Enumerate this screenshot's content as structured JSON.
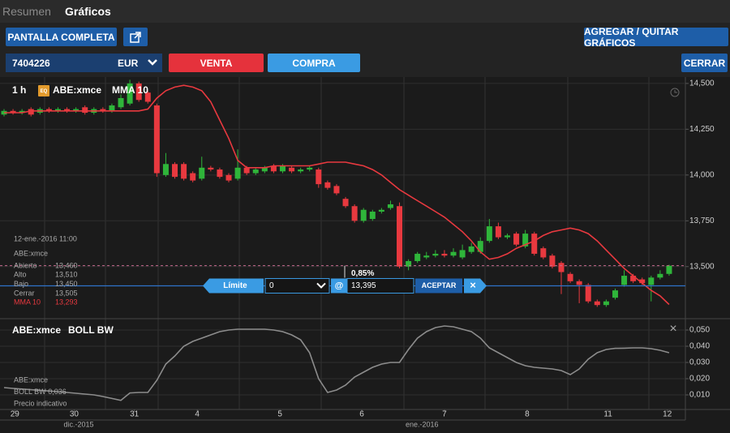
{
  "header": {
    "tabs": [
      "Resumen",
      "Gráficos"
    ]
  },
  "toolbar": {
    "fullscreen": "PANTALLA COMPLETA",
    "add_remove": "AGREGAR / QUITAR GRÁFICOS"
  },
  "order_bar": {
    "account": "7404226",
    "currency": "EUR",
    "sell": "VENTA",
    "buy": "COMPRA",
    "close": "CERRAR"
  },
  "chart_data": [
    {
      "type": "candlestick",
      "interval": "1 h",
      "badge": "EQ",
      "symbol": "ABE:xmce",
      "x": [
        0,
        1,
        2,
        3,
        4,
        5,
        6,
        7,
        8,
        9,
        10,
        11,
        12,
        13,
        14,
        15,
        16,
        17,
        18,
        19,
        20,
        21,
        22,
        23,
        24,
        25,
        26,
        27,
        28,
        29,
        30,
        31,
        32,
        33,
        34,
        35,
        36,
        37,
        38,
        39,
        40,
        41,
        42,
        43,
        44,
        45,
        46,
        47,
        48,
        49,
        50,
        51,
        52,
        53,
        54,
        55,
        56,
        57,
        58,
        59,
        60,
        61,
        62,
        63,
        64,
        65,
        66,
        67,
        68,
        69,
        70,
        71,
        72,
        73,
        74
      ],
      "open": [
        14.33,
        14.35,
        14.34,
        14.36,
        14.34,
        14.36,
        14.35,
        14.36,
        14.35,
        14.37,
        14.34,
        14.36,
        14.35,
        14.37,
        14.39,
        14.5,
        14.45,
        14.38,
        14.0,
        14.06,
        14.06,
        14.01,
        13.98,
        14.04,
        14.03,
        14.0,
        13.98,
        14.04,
        14.01,
        14.02,
        14.05,
        14.02,
        14.04,
        14.02,
        14.03,
        14.03,
        13.96,
        13.94,
        13.87,
        13.83,
        13.75,
        13.76,
        13.8,
        13.82,
        13.83,
        13.5,
        13.53,
        13.55,
        13.56,
        13.57,
        13.56,
        13.55,
        13.58,
        13.58,
        13.64,
        13.72,
        13.66,
        13.68,
        13.61,
        13.68,
        13.6,
        13.56,
        13.52,
        13.46,
        13.42,
        13.4,
        13.31,
        13.29,
        13.33,
        13.4,
        13.45,
        13.43,
        13.4,
        13.44,
        13.46
      ],
      "high": [
        14.36,
        14.36,
        14.36,
        14.37,
        14.37,
        14.37,
        14.37,
        14.37,
        14.37,
        14.38,
        14.37,
        14.37,
        14.39,
        14.44,
        14.52,
        14.51,
        14.46,
        14.39,
        14.12,
        14.07,
        14.07,
        14.02,
        14.1,
        14.05,
        14.04,
        14.01,
        14.14,
        14.05,
        14.04,
        14.05,
        14.06,
        14.06,
        14.05,
        14.04,
        14.05,
        14.04,
        13.97,
        13.95,
        13.88,
        13.84,
        13.82,
        13.81,
        13.82,
        13.86,
        13.85,
        13.54,
        13.58,
        13.58,
        13.59,
        13.59,
        13.6,
        13.62,
        13.63,
        13.66,
        13.76,
        13.74,
        13.68,
        13.69,
        13.7,
        13.69,
        13.61,
        13.57,
        13.53,
        13.47,
        13.43,
        13.41,
        13.32,
        13.32,
        13.38,
        13.48,
        13.46,
        13.44,
        13.45,
        13.48,
        13.51
      ],
      "low": [
        14.32,
        14.33,
        14.33,
        14.32,
        14.33,
        14.34,
        14.34,
        14.34,
        14.34,
        14.33,
        14.33,
        14.34,
        14.34,
        14.36,
        14.38,
        14.4,
        14.39,
        13.99,
        13.99,
        13.98,
        13.97,
        13.96,
        13.97,
        14.02,
        13.98,
        13.96,
        13.97,
        14.0,
        14.0,
        14.01,
        14.01,
        14.01,
        14.01,
        14.01,
        14.02,
        13.93,
        13.92,
        13.89,
        13.82,
        13.74,
        13.74,
        13.75,
        13.79,
        13.81,
        13.49,
        13.48,
        13.52,
        13.54,
        13.55,
        13.55,
        13.55,
        13.54,
        13.57,
        13.57,
        13.63,
        13.65,
        13.65,
        13.61,
        13.6,
        13.56,
        13.54,
        13.49,
        13.35,
        13.41,
        13.3,
        13.3,
        13.28,
        13.28,
        13.32,
        13.39,
        13.41,
        13.4,
        13.31,
        13.43,
        13.45
      ],
      "close": [
        14.35,
        14.34,
        14.35,
        14.33,
        14.36,
        14.35,
        14.36,
        14.35,
        14.36,
        14.34,
        14.36,
        14.35,
        14.38,
        14.42,
        14.5,
        14.41,
        14.4,
        14.01,
        14.06,
        13.99,
        13.98,
        13.97,
        14.04,
        14.03,
        13.99,
        13.97,
        14.04,
        14.01,
        14.03,
        14.04,
        14.02,
        14.05,
        14.02,
        14.03,
        14.04,
        13.95,
        13.93,
        13.9,
        13.83,
        13.75,
        13.81,
        13.8,
        13.81,
        13.84,
        13.5,
        13.53,
        13.57,
        13.56,
        13.57,
        13.56,
        13.58,
        13.59,
        13.61,
        13.64,
        13.72,
        13.66,
        13.67,
        13.62,
        13.68,
        13.57,
        13.55,
        13.5,
        13.47,
        13.42,
        13.4,
        13.31,
        13.29,
        13.31,
        13.37,
        13.45,
        13.42,
        13.41,
        13.44,
        13.46,
        13.505
      ],
      "up_color": "#2fb53a",
      "down_color": "#e8393f",
      "series": [
        {
          "name": "MMA 10",
          "color": "#e8393f",
          "values": [
            14.34,
            14.34,
            14.34,
            14.35,
            14.35,
            14.35,
            14.35,
            14.35,
            14.35,
            14.35,
            14.35,
            14.35,
            14.35,
            14.35,
            14.35,
            14.35,
            14.36,
            14.42,
            14.46,
            14.48,
            14.49,
            14.48,
            14.46,
            14.4,
            14.3,
            14.2,
            14.08,
            14.04,
            14.04,
            14.04,
            14.05,
            14.05,
            14.05,
            14.05,
            14.05,
            14.06,
            14.07,
            14.07,
            14.07,
            14.06,
            14.05,
            14.03,
            14.0,
            13.96,
            13.92,
            13.89,
            13.86,
            13.83,
            13.8,
            13.77,
            13.73,
            13.69,
            13.64,
            13.58,
            13.54,
            13.55,
            13.57,
            13.6,
            13.62,
            13.64,
            13.67,
            13.69,
            13.7,
            13.71,
            13.7,
            13.68,
            13.64,
            13.59,
            13.54,
            13.49,
            13.45,
            13.41,
            13.37,
            13.34,
            13.293
          ]
        }
      ],
      "xlim": [
        -0.45,
        75.81
      ],
      "ylim": [
        13.22,
        14.535
      ],
      "yticks": [
        {
          "value": 13.5,
          "label": "13,500"
        },
        {
          "value": 13.75,
          "label": "13,750"
        },
        {
          "value": 14.0,
          "label": "14,000"
        },
        {
          "value": 14.25,
          "label": "14,250"
        },
        {
          "value": 14.5,
          "label": "14,500"
        }
      ],
      "xticks": [
        {
          "value": 1.2,
          "label": "29"
        },
        {
          "value": 7.8,
          "label": "30"
        },
        {
          "value": 14.5,
          "label": "31"
        },
        {
          "value": 21.5,
          "label": "4"
        },
        {
          "value": 30.7,
          "label": "5"
        },
        {
          "value": 39.8,
          "label": "6"
        },
        {
          "value": 49.0,
          "label": "7"
        },
        {
          "value": 58.2,
          "label": "8"
        },
        {
          "value": 67.2,
          "label": "11"
        },
        {
          "value": 73.8,
          "label": "12"
        }
      ],
      "month_ticks": [
        {
          "value": 8.3,
          "label": "dic.-2015"
        },
        {
          "value": 46.5,
          "label": "ene.-2016"
        }
      ],
      "info_box": {
        "date": "12-ene.-2016 11:00",
        "symbol": "ABE:xmce",
        "rows": [
          {
            "label": "Abierto",
            "value": "13,460"
          },
          {
            "label": "Alto",
            "value": "13,510"
          },
          {
            "label": "Bajo",
            "value": "13,450"
          },
          {
            "label": "Cerrar",
            "value": "13,505"
          },
          {
            "label": "MMA 10",
            "value": "13,293"
          }
        ]
      },
      "order_line": {
        "value": 13.395,
        "label": "13,395"
      },
      "order_ticket": {
        "type": "Límite",
        "quantity": "0",
        "at": "@",
        "accept": "ACEPTAR",
        "close": "×",
        "percent": "0,85%"
      }
    },
    {
      "type": "line",
      "symbol": "ABE:xmce",
      "close": "×",
      "x": [
        0,
        1,
        2,
        3,
        4,
        5,
        6,
        7,
        8,
        9,
        10,
        11,
        12,
        13,
        14,
        15,
        16,
        17,
        18,
        19,
        20,
        21,
        22,
        23,
        24,
        25,
        26,
        27,
        28,
        29,
        30,
        31,
        32,
        33,
        34,
        35,
        36,
        37,
        38,
        39,
        40,
        41,
        42,
        43,
        44,
        45,
        46,
        47,
        48,
        49,
        50,
        51,
        52,
        53,
        54,
        55,
        56,
        57,
        58,
        59,
        60,
        61,
        62,
        63,
        64,
        65,
        66,
        67,
        68,
        69,
        70,
        71,
        72,
        73,
        74
      ],
      "series": [
        {
          "name": "BOLL BW",
          "color": "#8c8c8c",
          "values": [
            0.0145,
            0.014,
            0.0136,
            0.0132,
            0.0128,
            0.0124,
            0.012,
            0.0115,
            0.011,
            0.0105,
            0.01,
            0.009,
            0.0078,
            0.0066,
            0.0112,
            0.0115,
            0.0115,
            0.019,
            0.029,
            0.034,
            0.04,
            0.043,
            0.045,
            0.047,
            0.049,
            0.05,
            0.0505,
            0.0505,
            0.0505,
            0.0505,
            0.05,
            0.049,
            0.047,
            0.044,
            0.036,
            0.02,
            0.0115,
            0.013,
            0.016,
            0.021,
            0.024,
            0.027,
            0.029,
            0.03,
            0.03,
            0.038,
            0.045,
            0.049,
            0.0515,
            0.0525,
            0.052,
            0.0505,
            0.049,
            0.045,
            0.039,
            0.036,
            0.033,
            0.03,
            0.028,
            0.027,
            0.0265,
            0.026,
            0.025,
            0.0225,
            0.026,
            0.032,
            0.036,
            0.038,
            0.0387,
            0.0388,
            0.039,
            0.039,
            0.0385,
            0.0375,
            0.036
          ]
        }
      ],
      "last_value": "0,036",
      "note": "Precio indicativo",
      "xlim": [
        -0.45,
        75.81
      ],
      "ylim": [
        0.001,
        0.056
      ],
      "yticks": [
        {
          "value": 0.01,
          "label": "0,010"
        },
        {
          "value": 0.02,
          "label": "0,020"
        },
        {
          "value": 0.03,
          "label": "0,030"
        },
        {
          "value": 0.04,
          "label": "0,040"
        },
        {
          "value": 0.05,
          "label": "0,050"
        }
      ]
    }
  ]
}
